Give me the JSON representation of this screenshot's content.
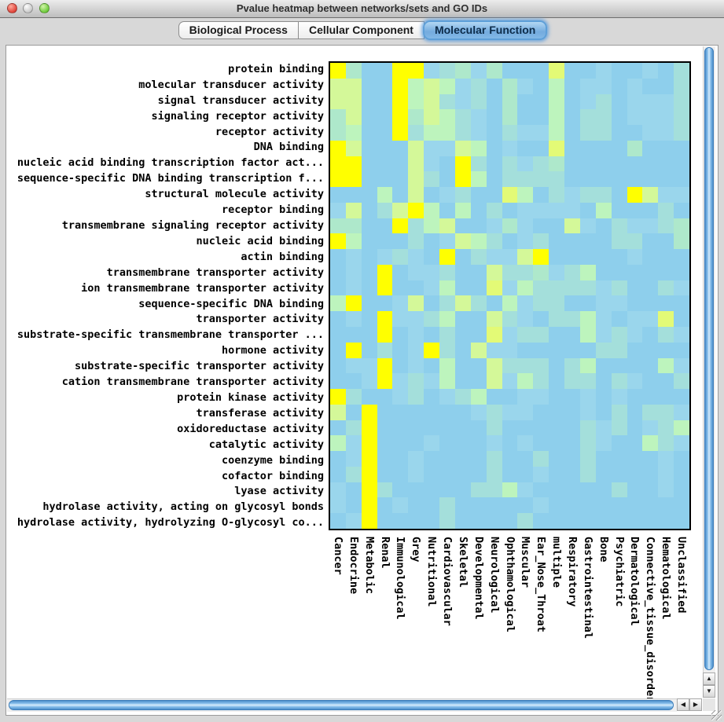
{
  "window": {
    "title": "Pvalue heatmap between networks/sets and GO IDs",
    "traffic_lights": [
      "close-red",
      "minimize-grey-disabled",
      "zoom-green"
    ]
  },
  "tabs": [
    {
      "label": "Biological Process",
      "selected": false
    },
    {
      "label": "Cellular Component",
      "selected": false
    },
    {
      "label": "Molecular Function",
      "selected": true
    }
  ],
  "scrollbars": {
    "up_glyph": "▲",
    "down_glyph": "▼",
    "left_glyph": "◀",
    "right_glyph": "▶"
  },
  "chart_data": {
    "type": "heatmap",
    "title": "Pvalue heatmap between networks/sets and GO IDs",
    "xlabel": "",
    "ylabel": "",
    "legend": "none",
    "palette_note": "index 0 = weakest (blue) to 7 = strongest (yellow) enrichment p-value",
    "palette": [
      "#8ECFEC",
      "#9AD6EC",
      "#A4DFDB",
      "#AEE8CB",
      "#BDF4BD",
      "#D4F899",
      "#E3FA76",
      "#FFFF00"
    ],
    "rows": [
      "protein binding",
      "molecular transducer activity",
      "signal transducer activity",
      "signaling receptor activity",
      "receptor activity",
      "DNA binding",
      "nucleic acid binding transcription factor act...",
      "sequence-specific DNA binding transcription f...",
      "structural molecule activity",
      "receptor binding",
      "transmembrane signaling receptor activity",
      "nucleic acid binding",
      "actin binding",
      "transmembrane transporter activity",
      "ion transmembrane transporter activity",
      "sequence-specific DNA binding",
      "transporter activity",
      "substrate-specific transmembrane transporter ...",
      "hormone activity",
      "substrate-specific transporter activity",
      "cation transmembrane transporter activity",
      "protein kinase activity",
      "transferase activity",
      "oxidoreductase activity",
      "catalytic activity",
      "coenzyme binding",
      "cofactor binding",
      "lyase activity",
      "hydrolase activity, acting on glycosyl bonds",
      "hydrolase activity, hydrolyzing O-glycosyl co..."
    ],
    "columns": [
      "Cancer",
      "Endocrine",
      "Metabolic",
      "Renal",
      "Immunological",
      "Grey",
      "Nutritional",
      "Cardiovascular",
      "Skeletal",
      "Developmental",
      "Neurological",
      "Ophthamological",
      "Muscular",
      "Ear_Nose_Throat",
      "multiple",
      "Respiratory",
      "Gastrointestinal",
      "Bone",
      "Psychiatric",
      "Dermatological",
      "Connective_tissue_disorder",
      "Hematological",
      "Unclassified"
    ],
    "grid": [
      [
        7,
        3,
        0,
        0,
        7,
        7,
        1,
        2,
        3,
        1,
        3,
        0,
        0,
        0,
        6,
        0,
        0,
        1,
        0,
        0,
        1,
        0,
        2
      ],
      [
        5,
        5,
        0,
        0,
        7,
        4,
        5,
        4,
        1,
        2,
        0,
        3,
        1,
        0,
        4,
        0,
        1,
        1,
        0,
        1,
        0,
        0,
        2
      ],
      [
        5,
        5,
        0,
        0,
        7,
        4,
        5,
        2,
        1,
        2,
        0,
        3,
        0,
        0,
        4,
        0,
        1,
        2,
        0,
        1,
        1,
        1,
        2
      ],
      [
        3,
        5,
        0,
        0,
        7,
        3,
        5,
        4,
        2,
        1,
        0,
        3,
        0,
        0,
        4,
        0,
        2,
        2,
        0,
        1,
        1,
        1,
        2
      ],
      [
        3,
        4,
        0,
        0,
        7,
        2,
        4,
        4,
        2,
        1,
        0,
        2,
        1,
        1,
        4,
        0,
        2,
        2,
        0,
        0,
        1,
        1,
        2
      ],
      [
        7,
        5,
        0,
        0,
        0,
        5,
        1,
        1,
        5,
        4,
        0,
        1,
        0,
        0,
        6,
        0,
        0,
        0,
        0,
        3,
        0,
        0,
        0
      ],
      [
        7,
        7,
        0,
        0,
        0,
        5,
        1,
        0,
        7,
        2,
        0,
        2,
        1,
        2,
        3,
        0,
        0,
        0,
        0,
        0,
        0,
        0,
        0
      ],
      [
        7,
        7,
        0,
        0,
        0,
        5,
        2,
        0,
        7,
        4,
        0,
        2,
        2,
        2,
        2,
        0,
        0,
        0,
        0,
        0,
        0,
        0,
        0
      ],
      [
        0,
        0,
        0,
        4,
        0,
        5,
        0,
        1,
        2,
        0,
        0,
        6,
        4,
        0,
        2,
        1,
        2,
        2,
        0,
        7,
        5,
        1,
        1
      ],
      [
        1,
        5,
        0,
        2,
        5,
        7,
        4,
        0,
        4,
        0,
        2,
        0,
        1,
        1,
        1,
        1,
        0,
        4,
        0,
        0,
        0,
        2,
        0
      ],
      [
        3,
        3,
        0,
        0,
        7,
        2,
        4,
        5,
        0,
        0,
        1,
        3,
        1,
        0,
        0,
        5,
        1,
        0,
        2,
        1,
        1,
        2,
        3
      ],
      [
        7,
        4,
        0,
        0,
        0,
        2,
        0,
        1,
        5,
        4,
        2,
        0,
        1,
        2,
        0,
        0,
        0,
        0,
        2,
        2,
        0,
        0,
        3
      ],
      [
        0,
        1,
        0,
        1,
        2,
        1,
        0,
        7,
        0,
        2,
        1,
        1,
        5,
        7,
        0,
        0,
        0,
        0,
        0,
        1,
        0,
        0,
        0
      ],
      [
        0,
        1,
        0,
        7,
        0,
        1,
        1,
        2,
        0,
        0,
        5,
        2,
        2,
        3,
        1,
        2,
        4,
        0,
        0,
        0,
        0,
        0,
        0
      ],
      [
        0,
        1,
        0,
        7,
        0,
        0,
        1,
        4,
        0,
        0,
        6,
        1,
        4,
        2,
        2,
        2,
        2,
        1,
        2,
        0,
        0,
        2,
        1
      ],
      [
        4,
        7,
        0,
        0,
        1,
        5,
        0,
        2,
        5,
        2,
        0,
        4,
        1,
        2,
        2,
        0,
        0,
        1,
        1,
        0,
        0,
        0,
        0
      ],
      [
        0,
        1,
        0,
        7,
        1,
        1,
        2,
        4,
        0,
        0,
        5,
        2,
        1,
        0,
        2,
        2,
        4,
        1,
        0,
        1,
        1,
        6,
        0
      ],
      [
        0,
        0,
        0,
        7,
        0,
        1,
        0,
        2,
        0,
        0,
        6,
        1,
        2,
        2,
        0,
        0,
        4,
        1,
        2,
        1,
        0,
        2,
        1
      ],
      [
        0,
        7,
        0,
        2,
        0,
        1,
        7,
        2,
        0,
        5,
        1,
        1,
        0,
        0,
        0,
        0,
        0,
        2,
        2,
        0,
        0,
        0,
        0
      ],
      [
        0,
        1,
        1,
        7,
        0,
        1,
        0,
        4,
        0,
        0,
        5,
        2,
        2,
        2,
        0,
        2,
        4,
        0,
        0,
        0,
        0,
        4,
        1
      ],
      [
        0,
        0,
        1,
        7,
        1,
        2,
        1,
        4,
        0,
        0,
        5,
        1,
        4,
        2,
        0,
        2,
        2,
        0,
        2,
        1,
        0,
        0,
        2
      ],
      [
        7,
        2,
        0,
        0,
        1,
        2,
        0,
        1,
        2,
        4,
        0,
        0,
        1,
        1,
        0,
        0,
        1,
        0,
        1,
        0,
        0,
        0,
        0
      ],
      [
        5,
        0,
        7,
        0,
        0,
        0,
        0,
        0,
        0,
        1,
        2,
        1,
        1,
        0,
        0,
        0,
        1,
        0,
        2,
        0,
        2,
        2,
        1
      ],
      [
        0,
        2,
        7,
        0,
        0,
        0,
        0,
        0,
        0,
        0,
        2,
        0,
        0,
        0,
        0,
        0,
        2,
        1,
        2,
        0,
        1,
        2,
        4
      ],
      [
        4,
        1,
        7,
        0,
        0,
        0,
        1,
        0,
        0,
        0,
        1,
        0,
        1,
        0,
        0,
        0,
        2,
        1,
        0,
        0,
        4,
        2,
        1
      ],
      [
        0,
        1,
        7,
        0,
        0,
        1,
        0,
        0,
        0,
        0,
        2,
        0,
        0,
        2,
        0,
        0,
        2,
        0,
        0,
        0,
        0,
        1,
        0
      ],
      [
        0,
        2,
        7,
        0,
        0,
        1,
        0,
        0,
        0,
        0,
        2,
        0,
        0,
        1,
        0,
        0,
        2,
        0,
        0,
        0,
        0,
        1,
        0
      ],
      [
        1,
        0,
        7,
        2,
        0,
        0,
        0,
        0,
        0,
        2,
        2,
        4,
        1,
        0,
        0,
        0,
        0,
        0,
        2,
        0,
        0,
        1,
        0
      ],
      [
        1,
        0,
        7,
        0,
        1,
        0,
        0,
        2,
        0,
        0,
        0,
        0,
        0,
        1,
        0,
        0,
        0,
        0,
        0,
        0,
        0,
        0,
        0
      ],
      [
        0,
        1,
        7,
        0,
        0,
        0,
        0,
        2,
        0,
        0,
        0,
        0,
        2,
        0,
        0,
        0,
        0,
        0,
        0,
        0,
        0,
        0,
        0
      ]
    ]
  }
}
